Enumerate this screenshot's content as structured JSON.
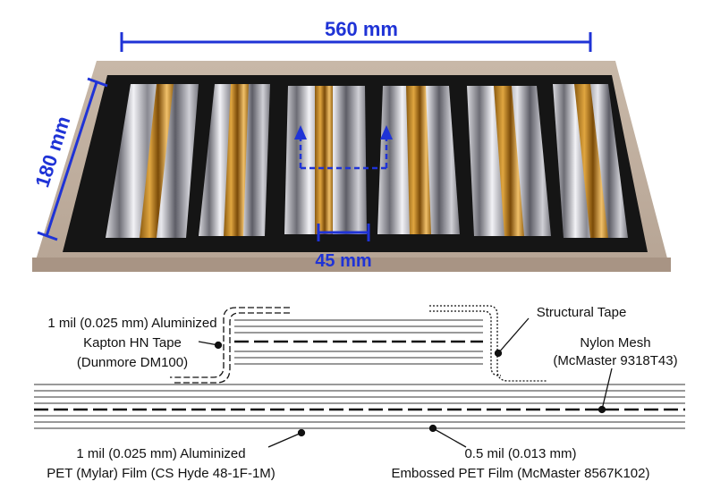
{
  "photo": {
    "dimension_width": "560 mm",
    "dimension_height": "180 mm",
    "dimension_gap": "45 mm",
    "dimension_color": "#1f33d6",
    "panel_count": 6
  },
  "diagram": {
    "labels": {
      "kapton_line1": "1 mil (0.025 mm) Aluminized",
      "kapton_line2": "Kapton HN Tape",
      "kapton_line3": "(Dunmore DM100)",
      "structural_tape": "Structural Tape",
      "nylon_line1": "Nylon Mesh",
      "nylon_line2": "(McMaster 9318T43)",
      "mylar_line1": "1 mil (0.025 mm) Aluminized",
      "mylar_line2": "PET (Mylar) Film (CS Hyde 48-1F-1M)",
      "embossed_line1": "0.5 mil (0.013 mm)",
      "embossed_line2": "Embossed PET Film (McMaster 8567K102)"
    }
  }
}
